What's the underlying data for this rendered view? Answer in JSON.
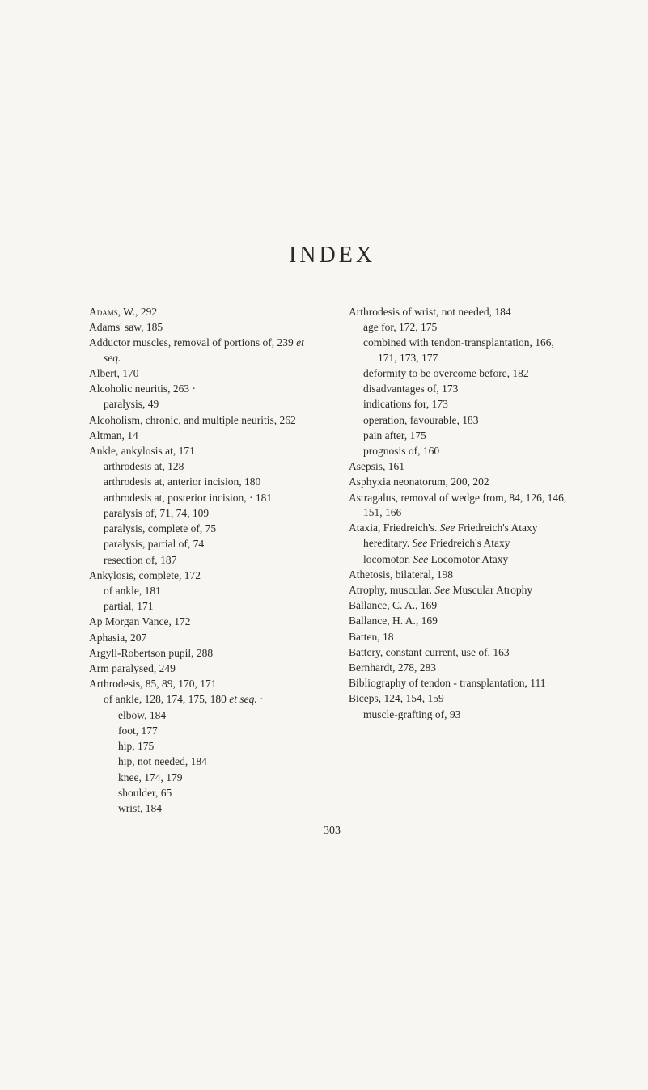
{
  "page": {
    "title": "INDEX",
    "page_number": "303",
    "background_color": "#f8f6f0",
    "text_color": "#2a2a2a",
    "title_fontsize": 28,
    "body_fontsize": 13.5,
    "title_letterspacing": 4
  },
  "left_column": [
    {
      "cls": "entry",
      "text": "Adams, W., 292",
      "sc_prefix": 5
    },
    {
      "cls": "entry",
      "text": "Adams' saw, 185"
    },
    {
      "cls": "entry",
      "text": "Adductor muscles, removal of portions of, 239 et seq.",
      "italic_words": [
        "et seq."
      ]
    },
    {
      "cls": "entry",
      "text": "Albert, 170"
    },
    {
      "cls": "entry",
      "text": "Alcoholic neuritis, 263 ·"
    },
    {
      "cls": "sub-entry",
      "text": "paralysis, 49"
    },
    {
      "cls": "entry",
      "text": "Alcoholism, chronic, and multiple neuritis, 262"
    },
    {
      "cls": "entry",
      "text": "Altman, 14"
    },
    {
      "cls": "entry",
      "text": "Ankle, ankylosis at, 171"
    },
    {
      "cls": "sub-entry",
      "text": "arthrodesis at, 128"
    },
    {
      "cls": "sub-entry",
      "text": "arthrodesis at, anterior incision, 180"
    },
    {
      "cls": "sub-entry",
      "text": "arthrodesis at, posterior incision, · 181"
    },
    {
      "cls": "sub-entry",
      "text": "paralysis of, 71, 74, 109"
    },
    {
      "cls": "sub-entry",
      "text": "paralysis, complete of, 75"
    },
    {
      "cls": "sub-entry",
      "text": "paralysis, partial of, 74"
    },
    {
      "cls": "sub-entry",
      "text": "resection of, 187"
    },
    {
      "cls": "entry",
      "text": "Ankylosis, complete, 172"
    },
    {
      "cls": "sub-entry",
      "text": "of ankle, 181"
    },
    {
      "cls": "sub-entry",
      "text": "partial, 171"
    },
    {
      "cls": "entry",
      "text": "Ap Morgan Vance, 172"
    },
    {
      "cls": "entry",
      "text": "Aphasia, 207"
    },
    {
      "cls": "entry",
      "text": "Argyll-Robertson pupil, 288"
    },
    {
      "cls": "entry",
      "text": "Arm paralysed, 249"
    },
    {
      "cls": "entry",
      "text": "Arthrodesis, 85, 89, 170, 171"
    },
    {
      "cls": "sub-entry",
      "text": "of ankle, 128, 174, 175, 180 et seq. ·",
      "italic_words": [
        "et seq."
      ]
    },
    {
      "cls": "sub-sub-entry",
      "text": "elbow, 184"
    },
    {
      "cls": "sub-sub-entry",
      "text": "foot, 177"
    },
    {
      "cls": "sub-sub-entry",
      "text": "hip, 175"
    },
    {
      "cls": "sub-sub-entry",
      "text": "hip, not needed, 184"
    },
    {
      "cls": "sub-sub-entry",
      "text": "knee, 174, 179"
    },
    {
      "cls": "sub-sub-entry",
      "text": "shoulder, 65"
    },
    {
      "cls": "sub-sub-entry",
      "text": "wrist, 184"
    }
  ],
  "right_column": [
    {
      "cls": "entry",
      "text": "Arthrodesis of wrist, not needed, 184"
    },
    {
      "cls": "sub-entry",
      "text": "age for, 172, 175"
    },
    {
      "cls": "sub-entry",
      "text": "combined with tendon-transplantation, 166, 171, 173, 177"
    },
    {
      "cls": "sub-entry",
      "text": "deformity to be overcome before, 182"
    },
    {
      "cls": "sub-entry",
      "text": "disadvantages of, 173"
    },
    {
      "cls": "sub-entry",
      "text": "indications for, 173"
    },
    {
      "cls": "sub-entry",
      "text": "operation, favourable, 183"
    },
    {
      "cls": "sub-entry",
      "text": "pain after, 175"
    },
    {
      "cls": "sub-entry",
      "text": "prognosis of, 160"
    },
    {
      "cls": "entry",
      "text": "Asepsis, 161"
    },
    {
      "cls": "entry",
      "text": "Asphyxia neonatorum, 200, 202"
    },
    {
      "cls": "entry",
      "text": "Astragalus, removal of wedge from, 84, 126, 146, 151, 166"
    },
    {
      "cls": "entry",
      "text": "Ataxia, Friedreich's. See Friedreich's Ataxy",
      "italic_words": [
        "See"
      ]
    },
    {
      "cls": "sub-entry",
      "text": "hereditary. See Friedreich's Ataxy",
      "italic_words": [
        "See"
      ]
    },
    {
      "cls": "sub-entry",
      "text": "locomotor. See Locomotor Ataxy",
      "italic_words": [
        "See"
      ]
    },
    {
      "cls": "entry",
      "text": "Athetosis, bilateral, 198"
    },
    {
      "cls": "entry",
      "text": "Atrophy, muscular. See Muscular Atrophy",
      "italic_words": [
        "See"
      ]
    },
    {
      "cls": "entry",
      "text": " "
    },
    {
      "cls": "entry",
      "text": "Ballance, C. A., 169"
    },
    {
      "cls": "entry",
      "text": "Ballance, H. A., 169"
    },
    {
      "cls": "entry",
      "text": "Batten, 18"
    },
    {
      "cls": "entry",
      "text": "Battery, constant current, use of, 163"
    },
    {
      "cls": "entry",
      "text": "Bernhardt, 278, 283"
    },
    {
      "cls": "entry",
      "text": "Bibliography of tendon - transplantation, 111"
    },
    {
      "cls": "entry",
      "text": "Biceps, 124, 154, 159"
    },
    {
      "cls": "sub-entry",
      "text": "muscle-grafting of, 93"
    }
  ]
}
